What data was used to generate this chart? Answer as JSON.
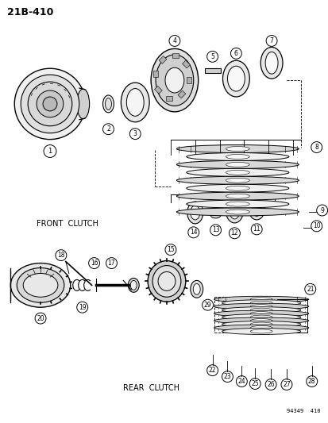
{
  "title": "21B-410",
  "stamp": "94349  410",
  "label_front": "FRONT  CLUTCH",
  "label_rear": "REAR  CLUTCH",
  "bg": "#ffffff",
  "lc": "#000000",
  "figsize": [
    4.14,
    5.33
  ],
  "dpi": 100
}
